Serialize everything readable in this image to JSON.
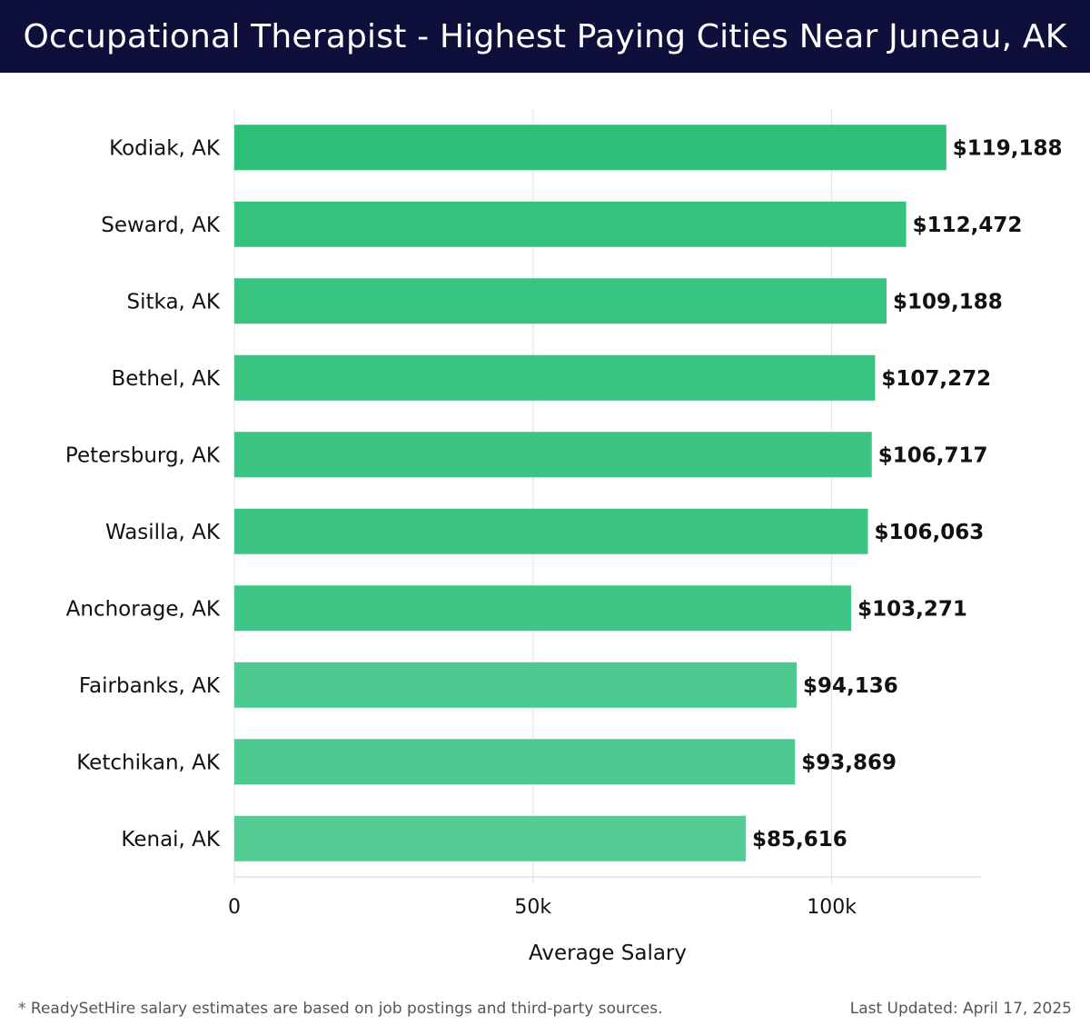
{
  "header": {
    "title": "Occupational Therapist - Highest Paying Cities Near Juneau, AK"
  },
  "footer": {
    "note": "* ReadySetHire salary estimates are based on job postings and third-party sources.",
    "updated": "Last Updated: April 17, 2025"
  },
  "colors": {
    "header_bg": "#0e0f3a",
    "bar_dark": "#2bbf78",
    "bar_light": "#57cc96"
  },
  "chart_data": {
    "type": "bar",
    "orientation": "horizontal",
    "title": "Occupational Therapist - Highest Paying Cities Near Juneau, AK",
    "xlabel": "Average Salary",
    "ylabel": "",
    "xlim": [
      0,
      125000
    ],
    "x_ticks": [
      0,
      50000,
      100000
    ],
    "x_tick_labels": [
      "0",
      "50k",
      "100k"
    ],
    "grid": "vertical",
    "categories": [
      "Kodiak, AK",
      "Seward, AK",
      "Sitka, AK",
      "Bethel, AK",
      "Petersburg, AK",
      "Wasilla, AK",
      "Anchorage, AK",
      "Fairbanks, AK",
      "Ketchikan, AK",
      "Kenai, AK"
    ],
    "values": [
      119188,
      112472,
      109188,
      107272,
      106717,
      106063,
      103271,
      94136,
      93869,
      85616
    ],
    "data_labels": [
      "$119,188",
      "$112,472",
      "$109,188",
      "$107,272",
      "$106,717",
      "$106,063",
      "$103,271",
      "$94,136",
      "$93,869",
      "$85,616"
    ]
  }
}
